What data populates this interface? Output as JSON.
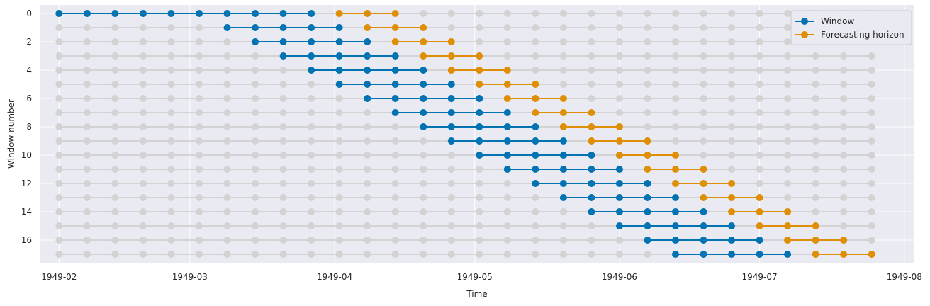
{
  "chart_data": {
    "type": "scatter",
    "title": "",
    "xlabel": "Time",
    "ylabel": "Window number",
    "x_ticks": [
      "1949-02",
      "1949-03",
      "1949-04",
      "1949-05",
      "1949-06",
      "1949-07",
      "1949-08"
    ],
    "y_ticks": [
      "0",
      "2",
      "4",
      "6",
      "8",
      "10",
      "12",
      "14",
      "16"
    ],
    "xlim": [
      "1949-01-28",
      "1949-08-03"
    ],
    "ylim": [
      17.6,
      -0.6
    ],
    "grid": true,
    "legend_position": "top-right",
    "colors": {
      "background": "#eaeaf2",
      "grid": "#ffffff",
      "inactive": "#d3d3d3",
      "window": "#0173b2",
      "horizon": "#de8f05"
    },
    "all_dates": [
      "1949-02-01",
      "1949-02-07",
      "1949-02-13",
      "1949-02-19",
      "1949-02-25",
      "1949-03-03",
      "1949-03-09",
      "1949-03-15",
      "1949-03-21",
      "1949-03-27",
      "1949-04-02",
      "1949-04-08",
      "1949-04-14",
      "1949-04-20",
      "1949-04-26",
      "1949-05-02",
      "1949-05-08",
      "1949-05-14",
      "1949-05-20",
      "1949-05-26",
      "1949-06-01",
      "1949-06-07",
      "1949-06-13",
      "1949-06-19",
      "1949-06-25",
      "1949-07-01",
      "1949-07-07",
      "1949-07-13",
      "1949-07-19",
      "1949-07-25"
    ],
    "series": [
      {
        "name": "Window",
        "color": "#0173b2"
      },
      {
        "name": "Forecasting horizon",
        "color": "#de8f05"
      }
    ],
    "windows": [
      {
        "window": 0,
        "window_dates": [
          "1949-02-01",
          "1949-02-07",
          "1949-02-13",
          "1949-02-19",
          "1949-02-25",
          "1949-03-03",
          "1949-03-09",
          "1949-03-15",
          "1949-03-21",
          "1949-03-27"
        ],
        "horizon_dates": [
          "1949-04-02",
          "1949-04-08",
          "1949-04-14"
        ]
      },
      {
        "window": 1,
        "window_dates": [
          "1949-03-09",
          "1949-03-15",
          "1949-03-21",
          "1949-03-27",
          "1949-04-02"
        ],
        "horizon_dates": [
          "1949-04-08",
          "1949-04-14",
          "1949-04-20"
        ]
      },
      {
        "window": 2,
        "window_dates": [
          "1949-03-15",
          "1949-03-21",
          "1949-03-27",
          "1949-04-02",
          "1949-04-08"
        ],
        "horizon_dates": [
          "1949-04-14",
          "1949-04-20",
          "1949-04-26"
        ]
      },
      {
        "window": 3,
        "window_dates": [
          "1949-03-21",
          "1949-03-27",
          "1949-04-02",
          "1949-04-08",
          "1949-04-14"
        ],
        "horizon_dates": [
          "1949-04-20",
          "1949-04-26",
          "1949-05-02"
        ]
      },
      {
        "window": 4,
        "window_dates": [
          "1949-03-27",
          "1949-04-02",
          "1949-04-08",
          "1949-04-14",
          "1949-04-20"
        ],
        "horizon_dates": [
          "1949-04-26",
          "1949-05-02",
          "1949-05-08"
        ]
      },
      {
        "window": 5,
        "window_dates": [
          "1949-04-02",
          "1949-04-08",
          "1949-04-14",
          "1949-04-20",
          "1949-04-26"
        ],
        "horizon_dates": [
          "1949-05-02",
          "1949-05-08",
          "1949-05-14"
        ]
      },
      {
        "window": 6,
        "window_dates": [
          "1949-04-08",
          "1949-04-14",
          "1949-04-20",
          "1949-04-26",
          "1949-05-02"
        ],
        "horizon_dates": [
          "1949-05-08",
          "1949-05-14",
          "1949-05-20"
        ]
      },
      {
        "window": 7,
        "window_dates": [
          "1949-04-14",
          "1949-04-20",
          "1949-04-26",
          "1949-05-02",
          "1949-05-08"
        ],
        "horizon_dates": [
          "1949-05-14",
          "1949-05-20",
          "1949-05-26"
        ]
      },
      {
        "window": 8,
        "window_dates": [
          "1949-04-20",
          "1949-04-26",
          "1949-05-02",
          "1949-05-08",
          "1949-05-14"
        ],
        "horizon_dates": [
          "1949-05-20",
          "1949-05-26",
          "1949-06-01"
        ]
      },
      {
        "window": 9,
        "window_dates": [
          "1949-04-26",
          "1949-05-02",
          "1949-05-08",
          "1949-05-14",
          "1949-05-20"
        ],
        "horizon_dates": [
          "1949-05-26",
          "1949-06-01",
          "1949-06-07"
        ]
      },
      {
        "window": 10,
        "window_dates": [
          "1949-05-02",
          "1949-05-08",
          "1949-05-14",
          "1949-05-20",
          "1949-05-26"
        ],
        "horizon_dates": [
          "1949-06-01",
          "1949-06-07",
          "1949-06-13"
        ]
      },
      {
        "window": 11,
        "window_dates": [
          "1949-05-08",
          "1949-05-14",
          "1949-05-20",
          "1949-05-26",
          "1949-06-01"
        ],
        "horizon_dates": [
          "1949-06-07",
          "1949-06-13",
          "1949-06-19"
        ]
      },
      {
        "window": 12,
        "window_dates": [
          "1949-05-14",
          "1949-05-20",
          "1949-05-26",
          "1949-06-01",
          "1949-06-07"
        ],
        "horizon_dates": [
          "1949-06-13",
          "1949-06-19",
          "1949-06-25"
        ]
      },
      {
        "window": 13,
        "window_dates": [
          "1949-05-20",
          "1949-05-26",
          "1949-06-01",
          "1949-06-07",
          "1949-06-13"
        ],
        "horizon_dates": [
          "1949-06-19",
          "1949-06-25",
          "1949-07-01"
        ]
      },
      {
        "window": 14,
        "window_dates": [
          "1949-05-26",
          "1949-06-01",
          "1949-06-07",
          "1949-06-13",
          "1949-06-19"
        ],
        "horizon_dates": [
          "1949-06-25",
          "1949-07-01",
          "1949-07-07"
        ]
      },
      {
        "window": 15,
        "window_dates": [
          "1949-06-01",
          "1949-06-07",
          "1949-06-13",
          "1949-06-19",
          "1949-06-25"
        ],
        "horizon_dates": [
          "1949-07-01",
          "1949-07-07",
          "1949-07-13"
        ]
      },
      {
        "window": 16,
        "window_dates": [
          "1949-06-07",
          "1949-06-13",
          "1949-06-19",
          "1949-06-25",
          "1949-07-01"
        ],
        "horizon_dates": [
          "1949-07-07",
          "1949-07-13",
          "1949-07-19"
        ]
      },
      {
        "window": 17,
        "window_dates": [
          "1949-06-13",
          "1949-06-19",
          "1949-06-25",
          "1949-07-01",
          "1949-07-07"
        ],
        "horizon_dates": [
          "1949-07-13",
          "1949-07-19",
          "1949-07-25"
        ]
      }
    ]
  }
}
